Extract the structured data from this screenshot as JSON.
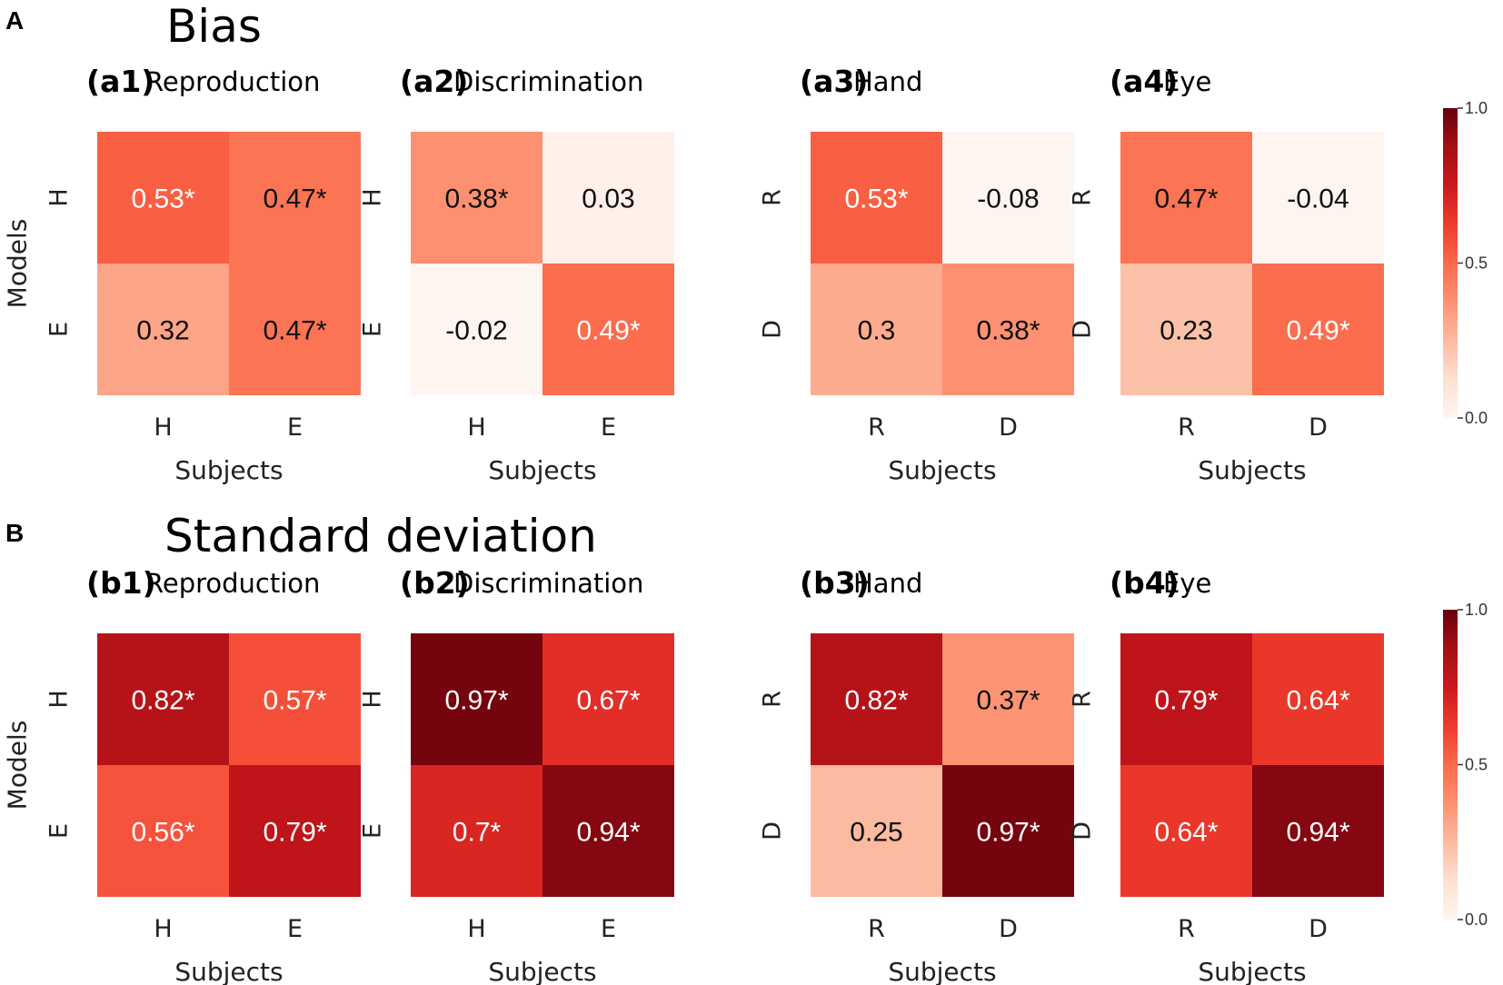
{
  "figure": {
    "section_a_letter": "A",
    "section_a_title": "Bias",
    "section_b_letter": "B",
    "section_b_title": "Standard deviation"
  },
  "chart_data": [
    {
      "type": "heatmap",
      "id": "a1",
      "label_id": "(a1)",
      "title": "Reproduction",
      "xlabel": "Subjects",
      "ylabel": "Models",
      "x_categories": [
        "H",
        "E"
      ],
      "y_categories": [
        "H",
        "E"
      ],
      "values": [
        [
          0.53,
          0.47
        ],
        [
          0.32,
          0.47
        ]
      ],
      "labels": [
        [
          "0.53*",
          "0.47*"
        ],
        [
          "0.32",
          "0.47*"
        ]
      ],
      "vmin": 0.0,
      "vmax": 1.0
    },
    {
      "type": "heatmap",
      "id": "a2",
      "label_id": "(a2)",
      "title": "Discrimination",
      "xlabel": "Subjects",
      "ylabel": "",
      "x_categories": [
        "H",
        "E"
      ],
      "y_categories": [
        "H",
        "E"
      ],
      "values": [
        [
          0.38,
          0.03
        ],
        [
          -0.02,
          0.49
        ]
      ],
      "labels": [
        [
          "0.38*",
          "0.03"
        ],
        [
          "-0.02",
          "0.49*"
        ]
      ],
      "vmin": 0.0,
      "vmax": 1.0
    },
    {
      "type": "heatmap",
      "id": "a3",
      "label_id": "(a3)",
      "title": "Hand",
      "xlabel": "Subjects",
      "ylabel": "",
      "x_categories": [
        "R",
        "D"
      ],
      "y_categories": [
        "R",
        "D"
      ],
      "values": [
        [
          0.53,
          -0.08
        ],
        [
          0.3,
          0.38
        ]
      ],
      "labels": [
        [
          "0.53*",
          "-0.08"
        ],
        [
          "0.3",
          "0.38*"
        ]
      ],
      "vmin": 0.0,
      "vmax": 1.0
    },
    {
      "type": "heatmap",
      "id": "a4",
      "label_id": "(a4)",
      "title": "Eye",
      "xlabel": "Subjects",
      "ylabel": "",
      "x_categories": [
        "R",
        "D"
      ],
      "y_categories": [
        "R",
        "D"
      ],
      "values": [
        [
          0.47,
          -0.04
        ],
        [
          0.23,
          0.49
        ]
      ],
      "labels": [
        [
          "0.47*",
          "-0.04"
        ],
        [
          "0.23",
          "0.49*"
        ]
      ],
      "vmin": 0.0,
      "vmax": 1.0
    },
    {
      "type": "heatmap",
      "id": "b1",
      "label_id": "(b1)",
      "title": "Reproduction",
      "xlabel": "Subjects",
      "ylabel": "Models",
      "x_categories": [
        "H",
        "E"
      ],
      "y_categories": [
        "H",
        "E"
      ],
      "values": [
        [
          0.82,
          0.57
        ],
        [
          0.56,
          0.79
        ]
      ],
      "labels": [
        [
          "0.82*",
          "0.57*"
        ],
        [
          "0.56*",
          "0.79*"
        ]
      ],
      "vmin": 0.0,
      "vmax": 1.0
    },
    {
      "type": "heatmap",
      "id": "b2",
      "label_id": "(b2)",
      "title": "Discrimination",
      "xlabel": "Subjects",
      "ylabel": "",
      "x_categories": [
        "H",
        "E"
      ],
      "y_categories": [
        "H",
        "E"
      ],
      "values": [
        [
          0.97,
          0.67
        ],
        [
          0.7,
          0.94
        ]
      ],
      "labels": [
        [
          "0.97*",
          "0.67*"
        ],
        [
          "0.7*",
          "0.94*"
        ]
      ],
      "vmin": 0.0,
      "vmax": 1.0
    },
    {
      "type": "heatmap",
      "id": "b3",
      "label_id": "(b3)",
      "title": "Hand",
      "xlabel": "Subjects",
      "ylabel": "",
      "x_categories": [
        "R",
        "D"
      ],
      "y_categories": [
        "R",
        "D"
      ],
      "values": [
        [
          0.82,
          0.37
        ],
        [
          0.25,
          0.97
        ]
      ],
      "labels": [
        [
          "0.82*",
          "0.37*"
        ],
        [
          "0.25",
          "0.97*"
        ]
      ],
      "vmin": 0.0,
      "vmax": 1.0
    },
    {
      "type": "heatmap",
      "id": "b4",
      "label_id": "(b4)",
      "title": "Eye",
      "xlabel": "Subjects",
      "ylabel": "",
      "x_categories": [
        "R",
        "D"
      ],
      "y_categories": [
        "R",
        "D"
      ],
      "values": [
        [
          0.79,
          0.64
        ],
        [
          0.64,
          0.94
        ]
      ],
      "labels": [
        [
          "0.79*",
          "0.64*"
        ],
        [
          "0.64*",
          "0.94*"
        ]
      ],
      "vmin": 0.0,
      "vmax": 1.0
    }
  ],
  "colorbars": [
    {
      "id": "a",
      "ticks": [
        "1.0",
        "0.5",
        "0.0"
      ],
      "tick_values": [
        1.0,
        0.5,
        0.0
      ],
      "colormap": "Reds"
    },
    {
      "id": "b",
      "ticks": [
        "1.0",
        "0.5",
        "0.0"
      ],
      "tick_values": [
        1.0,
        0.5,
        0.0
      ],
      "colormap": "Reds"
    }
  ]
}
